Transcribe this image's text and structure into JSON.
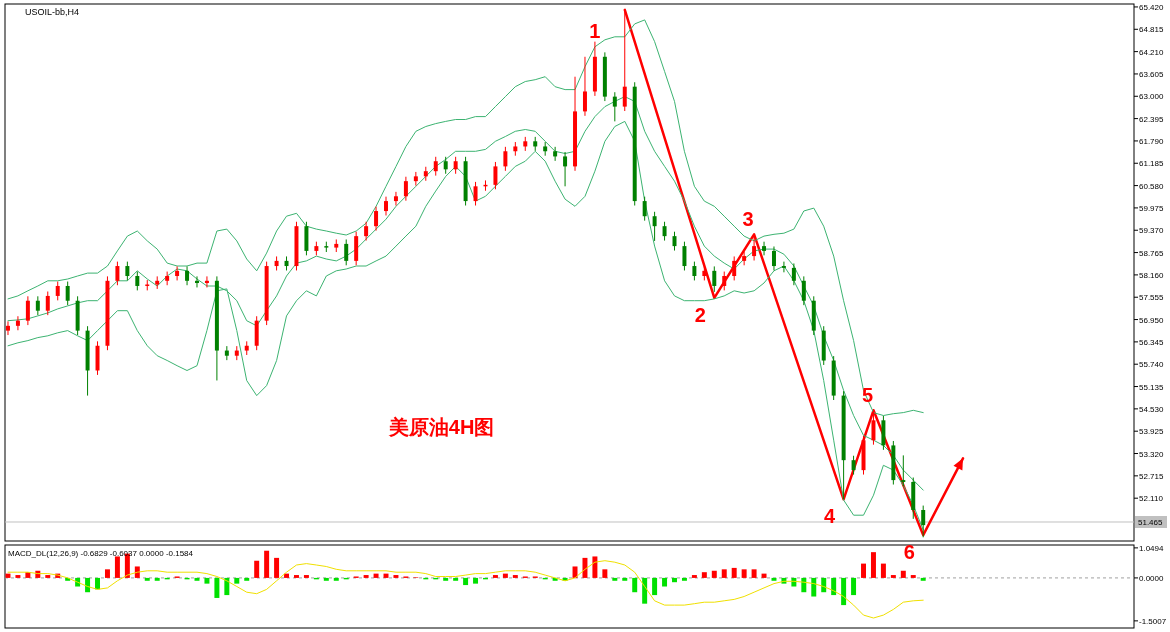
{
  "chart_data": [
    {
      "type": "candlestick",
      "title": "USOIL-bb,H4",
      "categories": [
        null,
        null,
        null,
        null,
        null,
        null,
        null,
        null,
        null,
        null,
        null,
        null,
        null,
        null,
        null,
        null,
        null,
        null,
        null,
        null,
        null,
        null,
        null,
        null,
        null,
        null,
        null,
        null,
        null,
        null,
        null,
        null,
        null,
        null,
        null,
        null,
        null,
        null,
        null,
        null,
        null,
        null,
        null,
        null,
        null,
        null,
        null,
        null,
        null,
        null,
        null,
        null,
        null,
        null,
        null,
        null,
        null,
        null,
        null,
        null,
        null,
        null,
        null,
        null,
        null,
        null,
        null,
        null,
        null,
        null,
        null,
        null,
        null,
        null,
        null,
        null,
        null,
        null,
        null,
        null,
        null,
        null,
        null,
        null,
        null,
        null,
        null,
        null,
        null,
        null,
        null,
        null,
        null,
        null,
        null,
        null,
        null
      ],
      "ohlc": [
        [
          56.65,
          56.9,
          56.53,
          56.78
        ],
        [
          56.78,
          57.04,
          56.66,
          56.92
        ],
        [
          56.92,
          57.58,
          56.8,
          57.46
        ],
        [
          57.46,
          57.58,
          57.07,
          57.19
        ],
        [
          57.19,
          57.71,
          57.07,
          57.59
        ],
        [
          57.59,
          57.98,
          57.47,
          57.86
        ],
        [
          57.86,
          57.98,
          57.34,
          57.46
        ],
        [
          57.46,
          57.58,
          56.53,
          56.65
        ],
        [
          56.65,
          56.77,
          54.89,
          55.57
        ],
        [
          55.57,
          56.36,
          55.45,
          56.24
        ],
        [
          56.24,
          58.12,
          56.12,
          58.0
        ],
        [
          58.0,
          58.52,
          57.88,
          58.4
        ],
        [
          58.4,
          58.52,
          58.01,
          58.13
        ],
        [
          58.13,
          58.25,
          57.74,
          57.86
        ],
        [
          57.86,
          58.02,
          57.74,
          57.9
        ],
        [
          57.9,
          58.12,
          57.78,
          58.0
        ],
        [
          58.0,
          58.25,
          57.88,
          58.13
        ],
        [
          58.13,
          58.39,
          58.01,
          58.27
        ],
        [
          58.27,
          58.39,
          57.88,
          58.0
        ],
        [
          58.0,
          58.12,
          57.82,
          57.94
        ],
        [
          57.94,
          58.12,
          57.82,
          58.0
        ],
        [
          58.0,
          58.12,
          55.3,
          56.11
        ],
        [
          56.11,
          56.23,
          55.85,
          55.97
        ],
        [
          55.97,
          56.23,
          55.85,
          56.11
        ],
        [
          56.11,
          56.36,
          55.99,
          56.24
        ],
        [
          56.24,
          57.04,
          56.12,
          56.92
        ],
        [
          56.92,
          58.52,
          56.8,
          58.4
        ],
        [
          58.4,
          58.66,
          58.28,
          58.54
        ],
        [
          58.54,
          58.66,
          58.28,
          58.4
        ],
        [
          58.4,
          59.6,
          58.28,
          59.48
        ],
        [
          59.48,
          59.6,
          58.69,
          58.81
        ],
        [
          58.81,
          59.06,
          58.69,
          58.94
        ],
        [
          58.94,
          59.06,
          58.78,
          58.9
        ],
        [
          58.9,
          59.12,
          58.78,
          59.0
        ],
        [
          59.0,
          59.12,
          58.42,
          58.54
        ],
        [
          58.54,
          59.33,
          58.42,
          59.21
        ],
        [
          59.21,
          59.6,
          59.09,
          59.48
        ],
        [
          59.48,
          60.01,
          59.36,
          59.89
        ],
        [
          59.89,
          60.28,
          59.77,
          60.16
        ],
        [
          60.16,
          60.41,
          60.04,
          60.29
        ],
        [
          60.29,
          60.82,
          60.17,
          60.7
        ],
        [
          60.7,
          60.95,
          60.58,
          60.83
        ],
        [
          60.83,
          61.09,
          60.71,
          60.97
        ],
        [
          60.97,
          61.36,
          60.85,
          61.24
        ],
        [
          61.24,
          61.36,
          60.9,
          61.02
        ],
        [
          61.02,
          61.36,
          60.9,
          61.24
        ],
        [
          61.24,
          61.36,
          60.04,
          60.16
        ],
        [
          60.16,
          60.68,
          60.04,
          60.56
        ],
        [
          60.56,
          60.72,
          60.44,
          60.6
        ],
        [
          60.6,
          61.22,
          60.48,
          61.1
        ],
        [
          61.1,
          61.63,
          60.98,
          61.51
        ],
        [
          61.51,
          61.76,
          61.39,
          61.64
        ],
        [
          61.64,
          61.9,
          61.52,
          61.78
        ],
        [
          61.78,
          61.9,
          61.52,
          61.64
        ],
        [
          61.64,
          61.76,
          61.39,
          61.51
        ],
        [
          61.51,
          61.63,
          61.25,
          61.37
        ],
        [
          61.37,
          61.49,
          60.56,
          61.1
        ],
        [
          61.1,
          63.53,
          60.98,
          62.59
        ],
        [
          62.59,
          64.07,
          62.47,
          63.13
        ],
        [
          63.13,
          64.48,
          63.01,
          64.07
        ],
        [
          64.07,
          64.19,
          62.87,
          62.99
        ],
        [
          62.99,
          63.11,
          62.32,
          62.72
        ],
        [
          62.72,
          65.34,
          62.6,
          63.26
        ],
        [
          63.26,
          63.38,
          60.04,
          60.16
        ],
        [
          60.16,
          60.28,
          59.63,
          59.75
        ],
        [
          59.75,
          59.87,
          59.08,
          59.48
        ],
        [
          59.48,
          59.6,
          59.09,
          59.21
        ],
        [
          59.21,
          59.33,
          58.82,
          58.94
        ],
        [
          58.94,
          59.06,
          58.28,
          58.4
        ],
        [
          58.4,
          58.52,
          58.01,
          58.13
        ],
        [
          58.13,
          58.39,
          58.01,
          58.27
        ],
        [
          58.27,
          58.39,
          57.7,
          57.86
        ],
        [
          57.86,
          58.25,
          57.74,
          58.13
        ],
        [
          58.13,
          58.66,
          58.01,
          58.54
        ],
        [
          58.54,
          58.79,
          58.42,
          58.67
        ],
        [
          58.67,
          59.26,
          58.55,
          58.94
        ],
        [
          58.94,
          59.06,
          58.69,
          58.81
        ],
        [
          58.81,
          58.93,
          58.28,
          58.4
        ],
        [
          58.4,
          58.52,
          58.23,
          58.35
        ],
        [
          58.35,
          58.47,
          57.88,
          58.0
        ],
        [
          58.0,
          58.12,
          57.34,
          57.46
        ],
        [
          57.46,
          57.58,
          56.53,
          56.65
        ],
        [
          56.65,
          56.77,
          55.72,
          55.84
        ],
        [
          55.84,
          55.96,
          54.77,
          54.89
        ],
        [
          54.89,
          55.01,
          52.08,
          53.14
        ],
        [
          53.14,
          53.26,
          52.75,
          52.87
        ],
        [
          52.87,
          53.8,
          52.75,
          53.68
        ],
        [
          53.68,
          54.49,
          53.56,
          54.22
        ],
        [
          54.22,
          54.34,
          53.42,
          53.54
        ],
        [
          53.54,
          53.66,
          52.48,
          52.6
        ],
        [
          52.6,
          53.27,
          52.43,
          52.55
        ],
        [
          52.55,
          52.67,
          51.55,
          51.79
        ],
        [
          51.79,
          51.91,
          51.05,
          51.38
        ],
        null,
        null,
        null,
        null
      ],
      "series": [
        {
          "type": "line",
          "color": "#3cb371",
          "values": [
            57.51,
            57.59,
            57.73,
            57.86,
            58.0,
            58.0,
            58.05,
            58.13,
            58.21,
            58.21,
            58.4,
            58.81,
            59.21,
            59.35,
            59.08,
            58.86,
            58.48,
            58.4,
            58.4,
            58.48,
            58.48,
            59.35,
            59.4,
            59.08,
            58.59,
            58.27,
            58.75,
            59.35,
            59.75,
            59.83,
            59.48,
            59.4,
            59.35,
            59.29,
            59.24,
            59.35,
            59.56,
            60.02,
            60.56,
            61.1,
            61.64,
            62.05,
            62.18,
            62.26,
            62.32,
            62.37,
            62.37,
            62.45,
            62.45,
            62.72,
            62.99,
            63.26,
            63.4,
            63.45,
            63.53,
            63.26,
            63.18,
            63.18,
            63.8,
            64.34,
            64.53,
            64.61,
            64.61,
            64.96,
            65.07,
            64.48,
            63.67,
            62.86,
            61.51,
            60.56,
            60.16,
            60.02,
            59.75,
            59.48,
            59.21,
            59.08,
            59.21,
            59.26,
            59.29,
            59.4,
            59.89,
            59.97,
            59.48,
            58.67,
            57.46,
            56.38,
            55.03,
            54.43,
            54.35,
            54.4,
            54.43,
            54.49,
            54.43,
            null,
            null,
            null,
            null
          ]
        },
        {
          "type": "line",
          "color": "#3cb371",
          "values": [
            56.92,
            56.94,
            56.97,
            57.05,
            57.13,
            57.24,
            57.32,
            57.4,
            57.46,
            57.46,
            57.73,
            58.0,
            58.0,
            58.27,
            58.05,
            57.86,
            58.13,
            58.32,
            58.27,
            58.05,
            57.86,
            57.86,
            57.73,
            57.46,
            56.92,
            56.78,
            57.19,
            57.59,
            58.13,
            58.48,
            58.54,
            58.67,
            58.59,
            58.54,
            58.67,
            58.86,
            59.13,
            59.4,
            59.67,
            60.02,
            60.29,
            60.56,
            60.83,
            61.1,
            61.29,
            61.51,
            61.51,
            61.51,
            61.56,
            61.78,
            61.91,
            62.05,
            62.1,
            62.05,
            61.78,
            61.51,
            61.45,
            61.51,
            62.05,
            62.45,
            62.72,
            62.86,
            62.99,
            62.86,
            62.05,
            61.51,
            61.1,
            60.7,
            60.16,
            59.48,
            58.94,
            58.67,
            58.48,
            58.32,
            58.59,
            58.81,
            58.86,
            58.86,
            58.72,
            58.4,
            57.86,
            57.32,
            56.51,
            55.84,
            55.03,
            54.35,
            53.81,
            53.68,
            53.54,
            53.27,
            52.87,
            52.6,
            52.33,
            null,
            null,
            null,
            null
          ]
        },
        {
          "type": "line",
          "color": "#3cb371",
          "values": [
            56.24,
            56.32,
            56.38,
            56.46,
            56.51,
            56.59,
            56.65,
            56.51,
            56.38,
            56.65,
            56.92,
            57.19,
            57.19,
            56.65,
            56.24,
            55.97,
            55.84,
            55.7,
            55.57,
            55.7,
            56.65,
            57.73,
            57.78,
            56.65,
            55.3,
            54.89,
            55.16,
            55.84,
            57.05,
            57.46,
            57.73,
            57.59,
            58.13,
            58.27,
            58.32,
            58.4,
            58.4,
            58.54,
            58.67,
            58.94,
            59.21,
            59.48,
            60.02,
            60.43,
            60.83,
            61.1,
            60.83,
            60.16,
            60.29,
            60.56,
            60.83,
            61.1,
            61.24,
            61.51,
            61.24,
            60.7,
            60.21,
            60.02,
            60.29,
            60.97,
            61.78,
            62.18,
            62.32,
            61.78,
            60.16,
            58.94,
            58.0,
            57.59,
            57.46,
            57.46,
            57.46,
            57.51,
            57.59,
            57.73,
            57.67,
            57.73,
            57.94,
            58.27,
            58.4,
            58.0,
            57.46,
            56.65,
            55.3,
            53.68,
            52.06,
            51.65,
            51.65,
            52.19,
            53.0,
            52.87,
            52.46,
            51.92,
            51.25,
            null,
            null,
            null,
            null
          ]
        },
        {
          "type": "line",
          "color": "#ff0000",
          "values": [
            null,
            null,
            null,
            null,
            null,
            null,
            null,
            null,
            null,
            null,
            null,
            null,
            null,
            null,
            null,
            null,
            null,
            null,
            null,
            null,
            null,
            null,
            null,
            null,
            null,
            null,
            null,
            null,
            null,
            null,
            null,
            null,
            null,
            null,
            null,
            null,
            null,
            null,
            null,
            null,
            null,
            null,
            null,
            null,
            null,
            null,
            null,
            null,
            null,
            null,
            null,
            null,
            null,
            null,
            null,
            null,
            null,
            null,
            null,
            null,
            null,
            null,
            65.34,
            null,
            null,
            null,
            null,
            null,
            null,
            null,
            null,
            57.54,
            null,
            null,
            null,
            59.26,
            null,
            null,
            null,
            null,
            null,
            null,
            null,
            null,
            52.08,
            null,
            null,
            54.49,
            null,
            null,
            null,
            null,
            51.11,
            null,
            null,
            null,
            53.19
          ]
        }
      ],
      "ylim": [
        50.95,
        65.5
      ],
      "yticks": [
        {
          "value": 65.42,
          "label": "65.420"
        },
        {
          "value": 64.815,
          "label": "64.815"
        },
        {
          "value": 64.21,
          "label": "64.210"
        },
        {
          "value": 63.605,
          "label": "63.605"
        },
        {
          "value": 63.0,
          "label": "63.000"
        },
        {
          "value": 62.395,
          "label": "62.395"
        },
        {
          "value": 61.79,
          "label": "61.790"
        },
        {
          "value": 61.185,
          "label": "61.185"
        },
        {
          "value": 60.58,
          "label": "60.580"
        },
        {
          "value": 59.975,
          "label": "59.975"
        },
        {
          "value": 59.37,
          "label": "59.370"
        },
        {
          "value": 58.765,
          "label": "58.765"
        },
        {
          "value": 58.16,
          "label": "58.160"
        },
        {
          "value": 57.555,
          "label": "57.555"
        },
        {
          "value": 56.95,
          "label": "56.950"
        },
        {
          "value": 56.345,
          "label": "56.345"
        },
        {
          "value": 55.74,
          "label": "55.740"
        },
        {
          "value": 55.135,
          "label": "55.135"
        },
        {
          "value": 54.53,
          "label": "54.530"
        },
        {
          "value": 53.925,
          "label": "53.925"
        },
        {
          "value": 53.32,
          "label": "53.320"
        },
        {
          "value": 52.715,
          "label": "52.715"
        },
        {
          "value": 52.11,
          "label": "52.110"
        }
      ],
      "ref_lines": [
        {
          "axis": "y",
          "value": 51.465,
          "label": "51.465",
          "color": "#c0c0c0"
        }
      ],
      "annotations": [
        "美原油4H图",
        "1",
        "2",
        "3",
        "4",
        "5",
        "6"
      ],
      "tick_labels": "y"
    },
    {
      "type": "bar",
      "title": "MACD_DL(12,26,9) -0.6829 -0.6037 0.0000 -0.1584",
      "categories": [
        null,
        null,
        null,
        null,
        null,
        null,
        null,
        null,
        null,
        null,
        null,
        null,
        null,
        null,
        null,
        null,
        null,
        null,
        null,
        null,
        null,
        null,
        null,
        null,
        null,
        null,
        null,
        null,
        null,
        null,
        null,
        null,
        null,
        null,
        null,
        null,
        null,
        null,
        null,
        null,
        null,
        null,
        null,
        null,
        null,
        null,
        null,
        null,
        null,
        null,
        null,
        null,
        null,
        null,
        null,
        null,
        null,
        null,
        null,
        null,
        null,
        null,
        null,
        null,
        null,
        null,
        null,
        null,
        null,
        null,
        null,
        null,
        null,
        null,
        null,
        null,
        null,
        null,
        null,
        null,
        null,
        null,
        null,
        null,
        null,
        null,
        null,
        null,
        null,
        null,
        null,
        null,
        null,
        null,
        null,
        null,
        null
      ],
      "series": [
        {
          "color": "#ff0000",
          "values": [
            0.15,
            0.1,
            0.2,
            0.25,
            0.1,
            0.15,
            null,
            null,
            null,
            null,
            0.3,
            0.75,
            0.85,
            0.4,
            null,
            null,
            null,
            0.05,
            null,
            null,
            null,
            null,
            null,
            null,
            null,
            0.6,
            0.95,
            0.7,
            0.15,
            0.1,
            0.1,
            null,
            null,
            null,
            null,
            0.05,
            0.1,
            0.15,
            0.15,
            0.1,
            0.05,
            0.02,
            null,
            null,
            null,
            null,
            null,
            null,
            null,
            0.1,
            0.15,
            0.1,
            0.05,
            0.05,
            null,
            null,
            null,
            0.4,
            0.7,
            0.75,
            0.3,
            null,
            null,
            null,
            null,
            null,
            null,
            null,
            null,
            0.1,
            0.2,
            0.25,
            0.3,
            0.35,
            0.3,
            0.3,
            0.15,
            null,
            null,
            null,
            null,
            null,
            null,
            null,
            null,
            null,
            0.5,
            0.9,
            0.5,
            0.1,
            0.25,
            0.1,
            null,
            null,
            null,
            null,
            null
          ]
        },
        {
          "color": "#00e000",
          "values": [
            null,
            null,
            null,
            null,
            null,
            null,
            -0.1,
            -0.3,
            -0.5,
            -0.4,
            null,
            null,
            null,
            null,
            -0.1,
            -0.1,
            -0.05,
            null,
            -0.05,
            -0.1,
            -0.2,
            -0.7,
            -0.6,
            -0.2,
            -0.1,
            null,
            null,
            null,
            null,
            null,
            null,
            -0.05,
            -0.1,
            -0.1,
            -0.05,
            null,
            null,
            null,
            null,
            null,
            null,
            null,
            -0.05,
            -0.05,
            -0.1,
            -0.1,
            -0.25,
            -0.2,
            -0.05,
            null,
            null,
            null,
            null,
            null,
            -0.05,
            -0.1,
            -0.1,
            null,
            null,
            null,
            null,
            -0.1,
            -0.1,
            -0.5,
            -0.9,
            -0.6,
            -0.3,
            -0.15,
            -0.1,
            null,
            null,
            null,
            null,
            null,
            null,
            null,
            null,
            -0.1,
            -0.2,
            -0.3,
            -0.5,
            -0.65,
            -0.5,
            -0.6,
            -0.95,
            -0.6,
            null,
            null,
            null,
            null,
            null,
            null,
            -0.1,
            null,
            null,
            null,
            null
          ]
        },
        {
          "type": "line",
          "color": "#f0e000",
          "values": [
            0.2,
            0.2,
            0.2,
            0.15,
            0.15,
            0.1,
            0,
            -0.15,
            -0.3,
            -0.4,
            -0.35,
            -0.1,
            0.1,
            0.2,
            0.25,
            0.25,
            0.2,
            0.2,
            0.2,
            0.2,
            0.15,
            0.05,
            -0.1,
            -0.3,
            -0.5,
            -0.55,
            -0.4,
            -0.1,
            0.2,
            0.45,
            0.5,
            0.45,
            0.4,
            0.3,
            0.25,
            0.25,
            0.25,
            0.25,
            0.25,
            0.2,
            0.2,
            0.2,
            0.15,
            0.05,
            0.05,
            0.05,
            0.1,
            0.15,
            0.15,
            0.2,
            0.25,
            0.25,
            0.25,
            0.2,
            0.1,
            0,
            -0.1,
            0,
            0.3,
            0.55,
            0.6,
            0.55,
            0.45,
            0.2,
            -0.3,
            -0.8,
            -0.95,
            -0.95,
            -0.95,
            -0.9,
            -0.85,
            -0.85,
            -0.8,
            -0.75,
            -0.65,
            -0.5,
            -0.35,
            -0.2,
            -0.12,
            -0.12,
            -0.15,
            -0.2,
            -0.3,
            -0.45,
            -0.65,
            -0.95,
            -1.3,
            -1.4,
            -1.3,
            -1.1,
            -0.85,
            -0.8,
            -0.78,
            null,
            null,
            null,
            null
          ]
        }
      ],
      "ylim": [
        -1.75,
        1.15
      ],
      "yticks": [
        {
          "value": 1.0494,
          "label": "1.0494"
        },
        {
          "value": 0,
          "label": "0.0000"
        },
        {
          "value": -1.5007,
          "label": "-1.5007"
        }
      ],
      "ref_lines": [
        {
          "axis": "y",
          "value": 0,
          "color": "#a0a0a0",
          "line_style": "dashed"
        }
      ],
      "tick_labels": "y"
    }
  ]
}
